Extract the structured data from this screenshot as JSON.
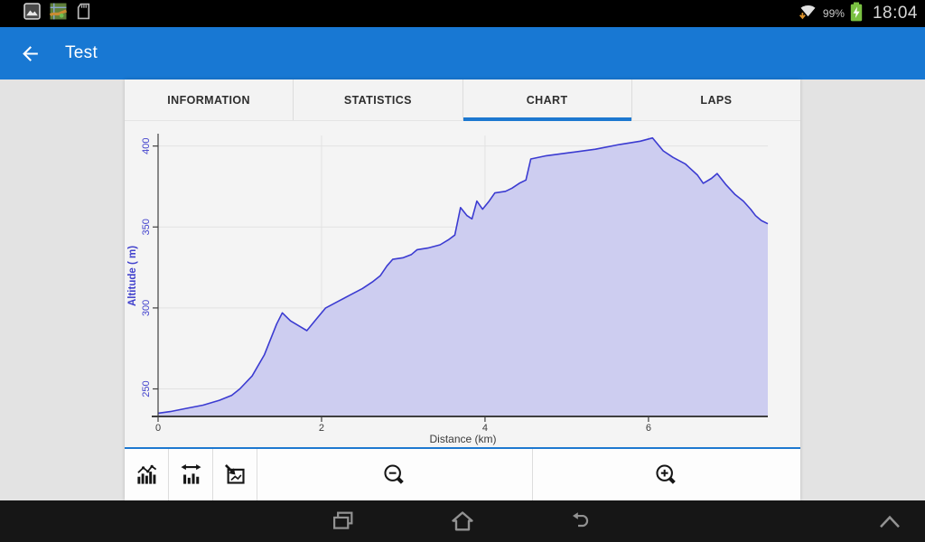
{
  "status_bar": {
    "time": "18:04",
    "battery_percent": "99%",
    "left_icons": [
      "gallery-icon",
      "map-icon",
      "sdcard-icon"
    ],
    "battery_charging": true
  },
  "action_bar": {
    "title": "Test"
  },
  "tabs": [
    {
      "label": "INFORMATION",
      "active": false
    },
    {
      "label": "STATISTICS",
      "active": false
    },
    {
      "label": "CHART",
      "active": true
    },
    {
      "label": "LAPS",
      "active": false
    }
  ],
  "chart_data": {
    "type": "area",
    "title": "",
    "xlabel": "Distance (km)",
    "ylabel": "Altitude ( m)",
    "xlim": [
      0,
      7.46
    ],
    "ylim": [
      233,
      406.5
    ],
    "xticks": [
      0,
      2,
      4,
      6
    ],
    "yticks": [
      250,
      300,
      350,
      400
    ],
    "grid": true,
    "legend": false,
    "line_color": "#3b3bd1",
    "fill_color": "#cdcdf0",
    "y_tick_color": "#4343cd",
    "x_tick_color": "#3b3b3b",
    "series": [
      {
        "name": "altitude",
        "x": [
          0,
          0.15,
          0.35,
          0.55,
          0.75,
          0.9,
          1.0,
          1.15,
          1.3,
          1.45,
          1.52,
          1.62,
          1.72,
          1.82,
          1.95,
          2.05,
          2.2,
          2.35,
          2.5,
          2.62,
          2.72,
          2.8,
          2.87,
          3.0,
          3.1,
          3.17,
          3.3,
          3.45,
          3.55,
          3.63,
          3.7,
          3.78,
          3.84,
          3.9,
          3.97,
          4.05,
          4.12,
          4.25,
          4.33,
          4.42,
          4.5,
          4.56,
          4.75,
          5.05,
          5.35,
          5.65,
          5.9,
          6.05,
          6.18,
          6.3,
          6.45,
          6.6,
          6.67,
          6.77,
          6.84,
          6.95,
          7.06,
          7.16,
          7.25,
          7.31,
          7.38,
          7.46
        ],
        "y": [
          235,
          236,
          238,
          240,
          243,
          246,
          250,
          258,
          271,
          290,
          297,
          292,
          289,
          286,
          294,
          300,
          304,
          308,
          312,
          316,
          320,
          326,
          330,
          331,
          333,
          336,
          337,
          339,
          342,
          345,
          362,
          357,
          355,
          366,
          361,
          366,
          371,
          372,
          374,
          377,
          379,
          392,
          394,
          396,
          398,
          401,
          403,
          405,
          397,
          393,
          389,
          382,
          377,
          380,
          383,
          376,
          370,
          366,
          361,
          357,
          354,
          352
        ]
      }
    ]
  },
  "toolbar": {
    "buttons": [
      "chart-style",
      "fit-width",
      "select-region",
      "zoom-out",
      "zoom-in"
    ]
  },
  "nav_bar": {
    "buttons": [
      "recent-apps",
      "home",
      "back",
      "collapse"
    ]
  },
  "colors": {
    "action_bar_blue": "#1878d3",
    "tab_underline_blue": "#1d78d0",
    "battery_green": "#7ac142",
    "wifi_arrow_orange": "#e0962e"
  }
}
